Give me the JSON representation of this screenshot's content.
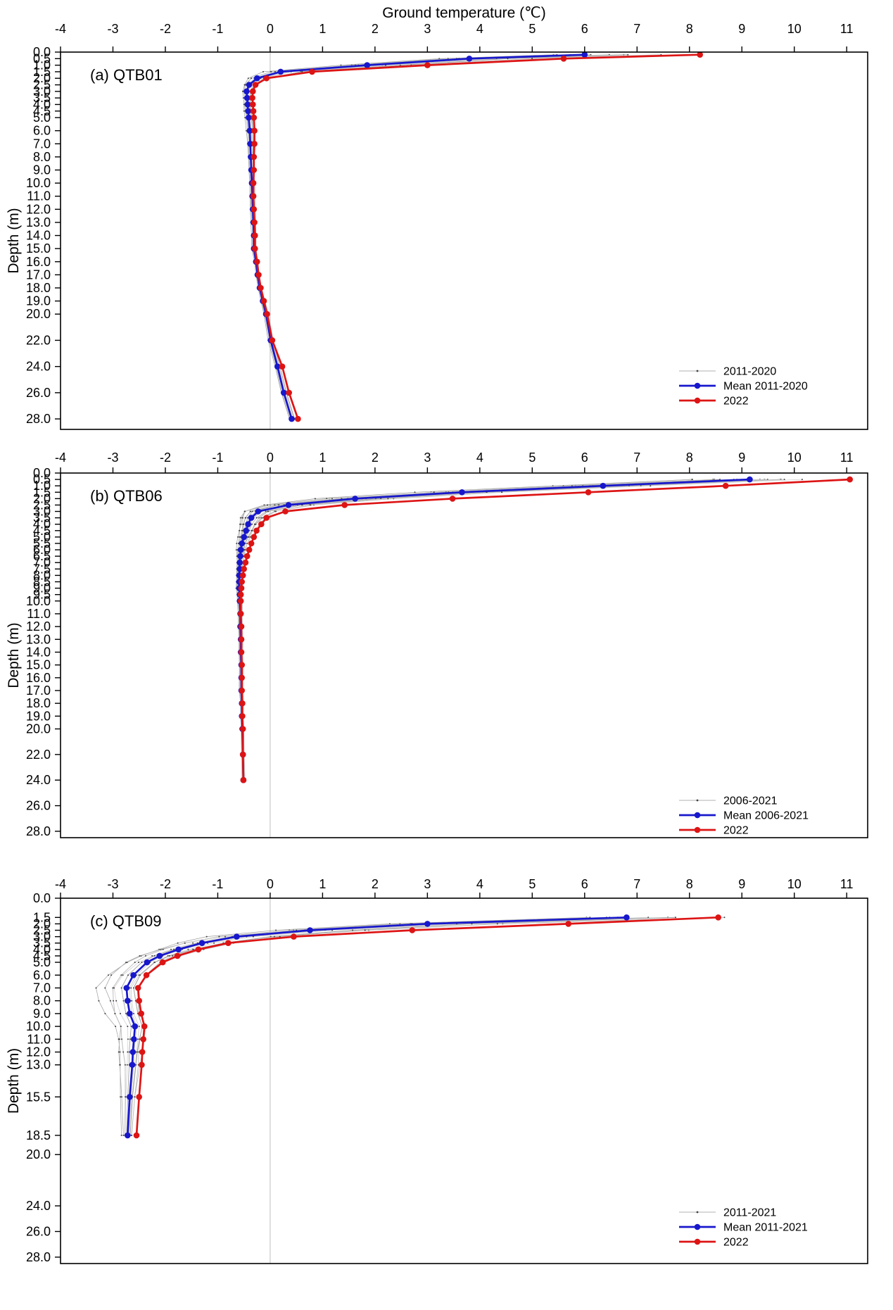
{
  "title": "Ground temperature (℃)",
  "depth_axis_label": "Depth (m)",
  "colors": {
    "mean_line": "#1717cc",
    "year2022_line": "#dd1414",
    "envelope_line": "#b0b0b0",
    "envelope_dot": "#404040",
    "zero_reference_line": "#c9c9c9",
    "axis": "#000000",
    "text": "#000000"
  },
  "chart_data": [
    {
      "type": "line",
      "panel_label": "(a) QTB01",
      "station": "QTB01",
      "xlabel": "Ground temperature (℃)",
      "ylabel": "Depth (m)",
      "xlim": [
        -4,
        11.4
      ],
      "x_ticks": [
        -4,
        -3,
        -2,
        -1,
        0,
        1,
        2,
        3,
        4,
        5,
        6,
        7,
        8,
        9,
        10,
        11
      ],
      "ylim": [
        0,
        28.8
      ],
      "y_ticks": [
        0,
        0.5,
        1,
        1.5,
        2,
        2.5,
        3,
        3.5,
        4,
        4.5,
        5,
        6,
        7,
        8,
        9,
        10,
        11,
        12,
        13,
        14,
        15,
        16,
        17,
        18,
        19,
        20,
        22,
        24,
        26,
        28
      ],
      "legend": [
        "2011-2020",
        "Mean 2011-2020",
        "2022"
      ],
      "grid": "zero-line-only",
      "legend_position": "inside-right-bottom",
      "depths": [
        0.2,
        0.5,
        1,
        1.5,
        2,
        2.5,
        3,
        3.5,
        4,
        4.5,
        5,
        6,
        7,
        8,
        9,
        10,
        11,
        12,
        13,
        14,
        15,
        16,
        17,
        18,
        19,
        20,
        22,
        24,
        26,
        28
      ],
      "series": [
        {
          "name": "2011-2020",
          "role": "envelope",
          "n_members": 10,
          "spread_below": [
            0.7,
            0.6,
            0.5,
            0.35,
            0.2,
            0.12,
            0.1,
            0.09,
            0.08,
            0.08,
            0.07,
            0.07,
            0.06,
            0.06,
            0.06,
            0.05,
            0.05,
            0.05,
            0.05,
            0.05,
            0.05,
            0.04,
            0.04,
            0.04,
            0.04,
            0.04,
            0.05,
            0.05,
            0.06,
            0.06
          ],
          "spread_above": [
            1.5,
            1.2,
            0.9,
            0.5,
            0.28,
            0.15,
            0.12,
            0.1,
            0.09,
            0.08,
            0.08,
            0.07,
            0.07,
            0.06,
            0.06,
            0.06,
            0.05,
            0.05,
            0.05,
            0.05,
            0.05,
            0.05,
            0.04,
            0.04,
            0.04,
            0.05,
            0.05,
            0.06,
            0.07,
            0.08
          ]
        },
        {
          "name": "Mean 2011-2020",
          "role": "mean",
          "values": [
            6.0,
            3.8,
            1.85,
            0.2,
            -0.25,
            -0.4,
            -0.45,
            -0.44,
            -0.43,
            -0.42,
            -0.41,
            -0.39,
            -0.38,
            -0.37,
            -0.36,
            -0.35,
            -0.34,
            -0.33,
            -0.32,
            -0.31,
            -0.31,
            -0.27,
            -0.24,
            -0.2,
            -0.14,
            -0.08,
            0.01,
            0.14,
            0.26,
            0.41
          ]
        },
        {
          "name": "2022",
          "role": "current",
          "values": [
            8.2,
            5.6,
            3.0,
            0.8,
            -0.07,
            -0.28,
            -0.33,
            -0.34,
            -0.33,
            -0.32,
            -0.31,
            -0.3,
            -0.3,
            -0.31,
            -0.31,
            -0.32,
            -0.32,
            -0.31,
            -0.3,
            -0.29,
            -0.29,
            -0.25,
            -0.22,
            -0.18,
            -0.12,
            -0.06,
            0.04,
            0.23,
            0.36,
            0.53
          ]
        }
      ]
    },
    {
      "type": "line",
      "panel_label": "(b) QTB06",
      "station": "QTB06",
      "xlabel": "Ground temperature (℃)",
      "ylabel": "Depth (m)",
      "xlim": [
        -4,
        11.4
      ],
      "x_ticks": [
        -4,
        -3,
        -2,
        -1,
        0,
        1,
        2,
        3,
        4,
        5,
        6,
        7,
        8,
        9,
        10,
        11
      ],
      "ylim": [
        0,
        28.5
      ],
      "y_ticks": [
        0,
        0.5,
        1,
        1.5,
        2,
        2.5,
        3,
        3.5,
        4,
        4.5,
        5,
        5.5,
        6,
        6.5,
        7,
        7.5,
        8,
        8.5,
        9,
        9.5,
        10,
        11,
        12,
        13,
        14,
        15,
        16,
        17,
        18,
        19,
        20,
        22,
        24,
        26,
        28
      ],
      "legend": [
        "2006-2021",
        "Mean 2006-2021",
        "2022"
      ],
      "grid": "zero-line-only",
      "legend_position": "inside-right-bottom",
      "depths": [
        0.5,
        1,
        1.5,
        2,
        2.5,
        3,
        3.5,
        4,
        4.5,
        5,
        5.5,
        6,
        6.5,
        7,
        7.5,
        8,
        8.5,
        9,
        9.5,
        10,
        11,
        12,
        13,
        14,
        15,
        16,
        17,
        18,
        19,
        20,
        22,
        24
      ],
      "series": [
        {
          "name": "2006-2021",
          "role": "envelope",
          "n_members": 16,
          "spread_below": [
            1.3,
            1.0,
            0.9,
            0.8,
            0.55,
            0.35,
            0.25,
            0.18,
            0.15,
            0.12,
            0.1,
            0.09,
            0.08,
            0.07,
            0.07,
            0.06,
            0.06,
            0.06,
            0.05,
            0.05,
            0.05,
            0.05,
            0.04,
            0.04,
            0.04,
            0.04,
            0.04,
            0.03,
            0.03,
            0.03,
            0.03,
            0.03
          ],
          "spread_above": [
            1.0,
            0.95,
            0.9,
            0.85,
            0.6,
            0.45,
            0.3,
            0.22,
            0.18,
            0.15,
            0.12,
            0.1,
            0.09,
            0.08,
            0.08,
            0.07,
            0.07,
            0.06,
            0.06,
            0.06,
            0.05,
            0.05,
            0.05,
            0.04,
            0.04,
            0.04,
            0.04,
            0.03,
            0.03,
            0.03,
            0.03,
            0.03
          ]
        },
        {
          "name": "Mean 2006-2021",
          "role": "mean",
          "values": [
            9.15,
            6.35,
            3.66,
            1.62,
            0.35,
            -0.23,
            -0.36,
            -0.42,
            -0.46,
            -0.5,
            -0.54,
            -0.56,
            -0.57,
            -0.58,
            -0.58,
            -0.59,
            -0.59,
            -0.59,
            -0.58,
            -0.58,
            -0.57,
            -0.57,
            -0.56,
            -0.56,
            -0.55,
            -0.55,
            -0.55,
            -0.54,
            -0.54,
            -0.53,
            -0.52,
            -0.51
          ]
        },
        {
          "name": "2022",
          "role": "current",
          "values": [
            11.06,
            8.69,
            6.07,
            3.48,
            1.42,
            0.29,
            -0.07,
            -0.17,
            -0.26,
            -0.31,
            -0.36,
            -0.4,
            -0.44,
            -0.47,
            -0.5,
            -0.52,
            -0.54,
            -0.55,
            -0.56,
            -0.56,
            -0.56,
            -0.55,
            -0.55,
            -0.55,
            -0.54,
            -0.54,
            -0.54,
            -0.53,
            -0.53,
            -0.52,
            -0.52,
            -0.51
          ]
        }
      ]
    },
    {
      "type": "line",
      "panel_label": "(c) QTB09",
      "station": "QTB09",
      "xlabel": "Ground temperature (℃)",
      "ylabel": "Depth (m)",
      "xlim": [
        -4,
        11.4
      ],
      "x_ticks": [
        -4,
        -3,
        -2,
        -1,
        0,
        1,
        2,
        3,
        4,
        5,
        6,
        7,
        8,
        9,
        10,
        11
      ],
      "ylim": [
        0,
        28.5
      ],
      "y_ticks": [
        0,
        1.5,
        2,
        2.5,
        3,
        3.5,
        4,
        4.5,
        5,
        6,
        7,
        8,
        9,
        10,
        11,
        12,
        13,
        15.5,
        18.5,
        20,
        24,
        26,
        28
      ],
      "legend": [
        "2011-2021",
        "Mean 2011-2021",
        "2022"
      ],
      "grid": "zero-line-only",
      "legend_position": "inside-right-bottom",
      "depths": [
        1.5,
        2,
        2.5,
        3,
        3.5,
        4,
        4.5,
        5,
        6,
        7,
        8,
        9,
        10,
        11,
        12,
        13,
        15.5,
        18.5
      ],
      "series": [
        {
          "name": "2011-2021",
          "role": "envelope",
          "n_members": 11,
          "spread_below": [
            0.9,
            0.75,
            0.65,
            0.6,
            0.55,
            0.5,
            0.5,
            0.5,
            0.55,
            0.6,
            0.55,
            0.5,
            0.45,
            0.4,
            0.35,
            0.3,
            0.2,
            0.12
          ],
          "spread_above": [
            2.2,
            1.8,
            1.5,
            1.1,
            0.7,
            0.5,
            0.4,
            0.35,
            0.3,
            0.28,
            0.28,
            0.26,
            0.24,
            0.2,
            0.18,
            0.16,
            0.12,
            0.1
          ]
        },
        {
          "name": "Mean 2011-2021",
          "role": "mean",
          "values": [
            6.8,
            3.0,
            0.76,
            -0.64,
            -1.3,
            -1.75,
            -2.11,
            -2.35,
            -2.61,
            -2.74,
            -2.72,
            -2.68,
            -2.58,
            -2.6,
            -2.62,
            -2.63,
            -2.68,
            -2.72
          ]
        },
        {
          "name": "2022",
          "role": "current",
          "values": [
            8.55,
            5.69,
            2.71,
            0.45,
            -0.8,
            -1.37,
            -1.77,
            -2.05,
            -2.36,
            -2.52,
            -2.5,
            -2.46,
            -2.4,
            -2.42,
            -2.44,
            -2.45,
            -2.5,
            -2.55
          ]
        }
      ]
    }
  ]
}
